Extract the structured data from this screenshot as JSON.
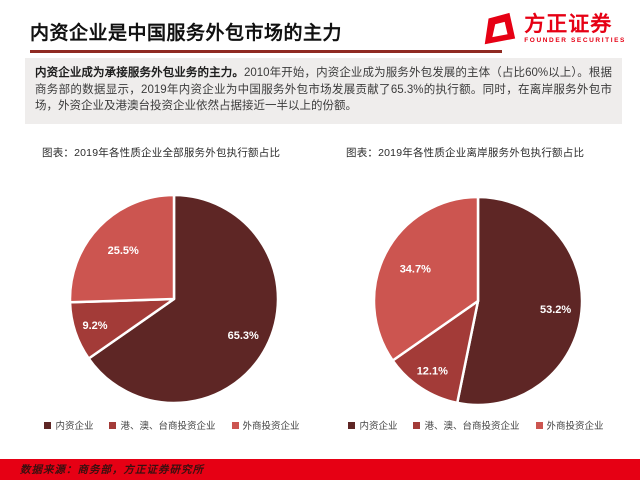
{
  "page": {
    "title": "内资企业是中国服务外包市场的主力",
    "logo": {
      "name": "方正证券",
      "subtitle": "FOUNDER SECURITIES"
    },
    "summary": {
      "lead_bold": "内资企业成为承接服务外包业务的主力。",
      "body": "2010年开始，内资企业成为服务外包发展的主体（占比60%以上）。根据商务部的数据显示，2019年内资企业为中国服务外包市场发展贡献了65.3%的执行额。同时，在离岸服务外包市场，外资企业及港澳台投资企业依然占据接近一半以上的份额。"
    },
    "footer_source": "数据来源：商务部，方正证券研究所"
  },
  "colors": {
    "accent_red": "#E60014",
    "title_underline": "#8F2A22",
    "pie_dark": "#5E2625",
    "pie_mid": "#A33B38",
    "pie_light": "#CC5550",
    "summary_bg": "#EFEDEC"
  },
  "chart_data": [
    {
      "type": "pie",
      "title": "图表：2019年各性质企业全部服务外包执行额占比",
      "labels": [
        "内资企业",
        "港、澳、台商投资企业",
        "外商投资企业"
      ],
      "values": [
        65.3,
        9.2,
        25.5
      ],
      "data_labels": [
        "65.3%",
        "9.2%",
        "25.5%"
      ],
      "colors": [
        "#5E2625",
        "#A33B38",
        "#CC5550"
      ],
      "start_angle_deg": 0,
      "direction": "clockwise",
      "legend_position": "bottom"
    },
    {
      "type": "pie",
      "title": "图表：2019年各性质企业离岸服务外包执行额占比",
      "labels": [
        "内资企业",
        "港、澳、台商投资企业",
        "外商投资企业"
      ],
      "values": [
        53.2,
        12.1,
        34.7
      ],
      "data_labels": [
        "53.2%",
        "12.1%",
        "34.7%"
      ],
      "colors": [
        "#5E2625",
        "#A33B38",
        "#CC5550"
      ],
      "start_angle_deg": 0,
      "direction": "clockwise",
      "legend_position": "bottom"
    }
  ]
}
